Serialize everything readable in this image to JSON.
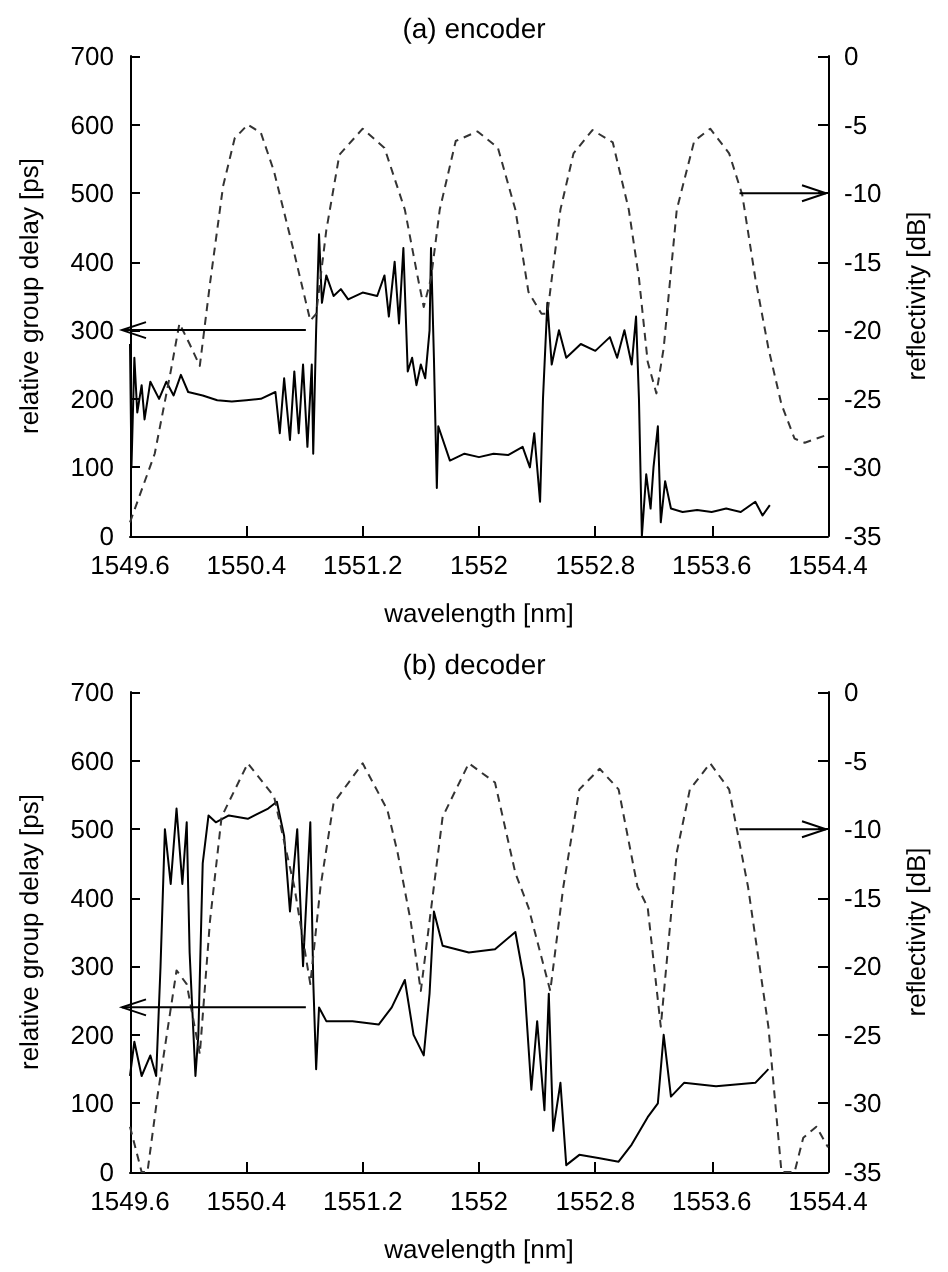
{
  "chart_data": [
    {
      "type": "line",
      "title": "(a) encoder",
      "xlabel": "wavelength [nm]",
      "ylabel": "relative group delay [ps]",
      "y2label": "reflectivity [dB]",
      "xlim": [
        1549.6,
        1554.4
      ],
      "xticks": [
        1549.6,
        1550.4,
        1551.2,
        1552,
        1552.8,
        1553.6,
        1554.4
      ],
      "ylim": [
        0,
        700
      ],
      "yticks": [
        0,
        100,
        200,
        300,
        400,
        500,
        600,
        700
      ],
      "y2lim": [
        -35,
        0
      ],
      "y2ticks": [
        -35,
        -30,
        -25,
        -20,
        -15,
        -10,
        -5,
        0
      ],
      "grid": false,
      "marker": "none",
      "series": [
        {
          "color": "#000000",
          "line_style": "solid",
          "x": [
            1549.6,
            1549.61,
            1549.63,
            1549.65,
            1549.68,
            1549.7,
            1549.74,
            1549.8,
            1549.85,
            1549.9,
            1549.95,
            1550.0,
            1550.1,
            1550.2,
            1550.3,
            1550.4,
            1550.5,
            1550.6,
            1550.63,
            1550.66,
            1550.7,
            1550.73,
            1550.76,
            1550.79,
            1550.82,
            1550.85,
            1550.86,
            1550.88,
            1550.9,
            1550.92,
            1550.95,
            1551.0,
            1551.05,
            1551.1,
            1551.2,
            1551.3,
            1551.35,
            1551.38,
            1551.42,
            1551.45,
            1551.48,
            1551.51,
            1551.54,
            1551.57,
            1551.6,
            1551.63,
            1551.66,
            1551.67,
            1551.69,
            1551.71,
            1551.72,
            1551.8,
            1551.9,
            1552.0,
            1552.1,
            1552.2,
            1552.3,
            1552.35,
            1552.38,
            1552.42,
            1552.44,
            1552.47,
            1552.5,
            1552.55,
            1552.6,
            1552.7,
            1552.8,
            1552.9,
            1552.95,
            1553.0,
            1553.05,
            1553.08,
            1553.1,
            1553.12,
            1553.15,
            1553.18,
            1553.2,
            1553.23,
            1553.25,
            1553.28,
            1553.32,
            1553.4,
            1553.5,
            1553.6,
            1553.7,
            1553.8,
            1553.9,
            1553.95,
            1554.0
          ],
          "values": [
            280,
            100,
            260,
            180,
            220,
            170,
            225,
            200,
            225,
            205,
            235,
            210,
            205,
            198,
            196,
            198,
            200,
            210,
            150,
            230,
            140,
            240,
            150,
            250,
            130,
            250,
            120,
            300,
            440,
            340,
            380,
            350,
            360,
            345,
            355,
            350,
            380,
            320,
            400,
            310,
            420,
            240,
            260,
            220,
            250,
            230,
            300,
            420,
            260,
            70,
            160,
            110,
            120,
            115,
            120,
            118,
            130,
            100,
            150,
            50,
            200,
            340,
            250,
            300,
            260,
            280,
            270,
            290,
            260,
            300,
            250,
            320,
            200,
            0,
            90,
            40,
            100,
            160,
            20,
            80,
            40,
            35,
            38,
            35,
            40,
            35,
            50,
            30,
            45
          ]
        },
        {
          "color": "#333333",
          "line_style": "dashed",
          "axis": "y2",
          "x": [
            1549.6,
            1549.77,
            1549.88,
            1549.94,
            1550.01,
            1550.08,
            1550.15,
            1550.24,
            1550.32,
            1550.41,
            1550.5,
            1550.59,
            1550.73,
            1550.84,
            1550.88,
            1550.95,
            1551.04,
            1551.2,
            1551.35,
            1551.49,
            1551.58,
            1551.62,
            1551.67,
            1551.73,
            1551.84,
            1551.99,
            1552.13,
            1552.25,
            1552.34,
            1552.43,
            1552.47,
            1552.56,
            1552.65,
            1552.78,
            1552.92,
            1553.03,
            1553.1,
            1553.16,
            1553.22,
            1553.27,
            1553.36,
            1553.48,
            1553.59,
            1553.72,
            1553.81,
            1553.9,
            1553.99,
            1554.08,
            1554.17,
            1554.24,
            1554.32,
            1554.4
          ],
          "values": [
            -34,
            -29,
            -23,
            -19.5,
            -21,
            -22.6,
            -16.6,
            -9.5,
            -6,
            -5,
            -5.6,
            -8.4,
            -14.4,
            -19.3,
            -18.8,
            -12.7,
            -7.2,
            -5.3,
            -6.7,
            -11.2,
            -16.2,
            -18.3,
            -16.2,
            -11.2,
            -6.2,
            -5.5,
            -6.7,
            -11.2,
            -17.2,
            -18.8,
            -18.8,
            -11.2,
            -7.1,
            -5.4,
            -6.3,
            -11.2,
            -16.2,
            -22.3,
            -24.6,
            -21.3,
            -11.2,
            -6.2,
            -5.3,
            -7.1,
            -10.1,
            -16.2,
            -21.3,
            -25.4,
            -27.9,
            -28.2,
            -27.9,
            -27.6
          ]
        }
      ]
    },
    {
      "type": "line",
      "title": "(b) decoder",
      "xlabel": "wavelength [nm]",
      "ylabel": "relative group delay [ps]",
      "y2label": "reflectivity [dB]",
      "xlim": [
        1549.6,
        1554.4
      ],
      "xticks": [
        1549.6,
        1550.4,
        1551.2,
        1552,
        1552.8,
        1553.6,
        1554.4
      ],
      "ylim": [
        0,
        700
      ],
      "yticks": [
        0,
        100,
        200,
        300,
        400,
        500,
        600,
        700
      ],
      "y2lim": [
        -35,
        0
      ],
      "y2ticks": [
        -35,
        -30,
        -25,
        -20,
        -15,
        -10,
        -5,
        0
      ],
      "grid": false,
      "marker": "none",
      "series": [
        {
          "color": "#000000",
          "line_style": "solid",
          "x": [
            1549.6,
            1549.63,
            1549.68,
            1549.74,
            1549.78,
            1549.81,
            1549.84,
            1549.88,
            1549.92,
            1549.96,
            1549.99,
            1550.01,
            1550.05,
            1550.07,
            1550.1,
            1550.14,
            1550.19,
            1550.28,
            1550.41,
            1550.55,
            1550.61,
            1550.66,
            1550.7,
            1550.75,
            1550.79,
            1550.84,
            1550.86,
            1550.88,
            1550.9,
            1550.95,
            1551.13,
            1551.31,
            1551.4,
            1551.49,
            1551.55,
            1551.62,
            1551.66,
            1551.69,
            1551.75,
            1551.93,
            1552.11,
            1552.25,
            1552.31,
            1552.36,
            1552.4,
            1552.45,
            1552.48,
            1552.51,
            1552.56,
            1552.6,
            1552.69,
            1552.83,
            1552.96,
            1553.05,
            1553.16,
            1553.23,
            1553.27,
            1553.32,
            1553.41,
            1553.63,
            1553.9,
            1553.99
          ],
          "values": [
            140,
            190,
            140,
            170,
            140,
            300,
            500,
            420,
            530,
            420,
            510,
            320,
            140,
            200,
            450,
            520,
            510,
            520,
            515,
            530,
            540,
            490,
            380,
            500,
            300,
            510,
            280,
            150,
            240,
            220,
            220,
            215,
            240,
            280,
            200,
            170,
            260,
            380,
            330,
            320,
            325,
            350,
            280,
            120,
            220,
            90,
            260,
            60,
            130,
            10,
            25,
            20,
            15,
            40,
            80,
            100,
            200,
            110,
            130,
            125,
            130,
            150
          ]
        },
        {
          "color": "#333333",
          "line_style": "dashed",
          "axis": "y2",
          "x": [
            1549.6,
            1549.68,
            1549.72,
            1549.79,
            1549.92,
            1549.99,
            1550.08,
            1550.15,
            1550.23,
            1550.41,
            1550.59,
            1550.73,
            1550.84,
            1550.91,
            1551.0,
            1551.2,
            1551.37,
            1551.44,
            1551.53,
            1551.6,
            1551.66,
            1551.75,
            1551.93,
            1552.11,
            1552.25,
            1552.34,
            1552.49,
            1552.58,
            1552.69,
            1552.83,
            1552.96,
            1553.09,
            1553.16,
            1553.25,
            1553.36,
            1553.45,
            1553.59,
            1553.72,
            1553.85,
            1553.99,
            1554.08,
            1554.17,
            1554.23,
            1554.32,
            1554.4
          ],
          "values": [
            -31.7,
            -35,
            -35,
            -29.4,
            -20.3,
            -21.3,
            -26.4,
            -16.7,
            -9.1,
            -5.2,
            -7.6,
            -14.2,
            -21.3,
            -14.2,
            -8.1,
            -5.2,
            -8.6,
            -11.7,
            -16.7,
            -21.8,
            -16.7,
            -9.1,
            -5.2,
            -6.6,
            -13.2,
            -15.7,
            -21.8,
            -14.2,
            -7.1,
            -5.6,
            -7.1,
            -14.2,
            -15.7,
            -24.4,
            -11.7,
            -7.1,
            -5.2,
            -7.1,
            -14.2,
            -24.4,
            -35,
            -35,
            -32.5,
            -31.7,
            -33.2
          ]
        }
      ]
    }
  ]
}
